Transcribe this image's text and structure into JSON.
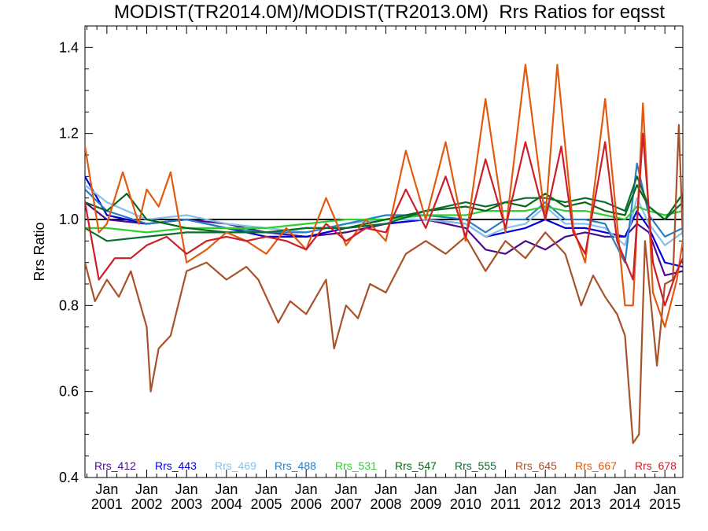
{
  "chart_data": {
    "type": "line",
    "title": "MODIST(TR2014.0M)/MODIST(TR2013.0M)  Rrs Ratios for eqsst",
    "xlabel": "",
    "ylabel": "Rrs Ratio",
    "xlim": [
      2000.45,
      2015.45
    ],
    "ylim": [
      0.4,
      1.45
    ],
    "yticks": [
      0.4,
      0.6,
      0.8,
      1.0,
      1.2,
      1.4
    ],
    "ytick_labels": [
      "0.4",
      "0.6",
      "0.8",
      "1.0",
      "1.2",
      "1.4"
    ],
    "xticks": [
      2001,
      2002,
      2003,
      2004,
      2005,
      2006,
      2007,
      2008,
      2009,
      2010,
      2011,
      2012,
      2013,
      2014,
      2015
    ],
    "xtick_labels": [
      [
        "Jan",
        "2001"
      ],
      [
        "Jan",
        "2002"
      ],
      [
        "Jan",
        "2003"
      ],
      [
        "Jan",
        "2004"
      ],
      [
        "Jan",
        "2005"
      ],
      [
        "Jan",
        "2006"
      ],
      [
        "Jan",
        "2007"
      ],
      [
        "Jan",
        "2008"
      ],
      [
        "Jan",
        "2009"
      ],
      [
        "Jan",
        "2010"
      ],
      [
        "Jan",
        "2011"
      ],
      [
        "Jan",
        "2012"
      ],
      [
        "Jan",
        "2013"
      ],
      [
        "Jan",
        "2014"
      ],
      [
        "Jan",
        "2015"
      ]
    ],
    "reference_line": 1.0,
    "legend_position": "bottom",
    "series": [
      {
        "name": "Rrs_412",
        "color": "#4b0a8c",
        "points": [
          [
            2000.45,
            1.04
          ],
          [
            2001,
            1.0
          ],
          [
            2002,
            0.99
          ],
          [
            2003,
            1.0
          ],
          [
            2004,
            0.99
          ],
          [
            2005,
            0.97
          ],
          [
            2006,
            0.96
          ],
          [
            2007,
            0.97
          ],
          [
            2008,
            0.99
          ],
          [
            2009,
            1.0
          ],
          [
            2010,
            0.98
          ],
          [
            2010.5,
            0.93
          ],
          [
            2011,
            0.92
          ],
          [
            2011.5,
            0.95
          ],
          [
            2012,
            0.93
          ],
          [
            2012.5,
            0.96
          ],
          [
            2013,
            0.97
          ],
          [
            2013.5,
            0.96
          ],
          [
            2014,
            0.96
          ],
          [
            2014.3,
            0.99
          ],
          [
            2014.6,
            0.97
          ],
          [
            2015,
            0.87
          ],
          [
            2015.45,
            0.88
          ]
        ]
      },
      {
        "name": "Rrs_443",
        "color": "#0000dd",
        "points": [
          [
            2000.45,
            1.1
          ],
          [
            2001,
            1.01
          ],
          [
            2002,
            0.99
          ],
          [
            2003,
            1.0
          ],
          [
            2004,
            0.98
          ],
          [
            2005,
            0.96
          ],
          [
            2006,
            0.96
          ],
          [
            2007,
            0.98
          ],
          [
            2008,
            0.99
          ],
          [
            2009,
            1.0
          ],
          [
            2010,
            0.99
          ],
          [
            2010.5,
            0.96
          ],
          [
            2011,
            0.97
          ],
          [
            2011.5,
            0.98
          ],
          [
            2012,
            1.0
          ],
          [
            2012.5,
            0.98
          ],
          [
            2013,
            0.98
          ],
          [
            2013.5,
            0.97
          ],
          [
            2014,
            0.96
          ],
          [
            2014.3,
            1.02
          ],
          [
            2014.6,
            0.98
          ],
          [
            2015,
            0.9
          ],
          [
            2015.45,
            0.89
          ]
        ]
      },
      {
        "name": "Rrs_469",
        "color": "#87c1e8",
        "points": [
          [
            2000.45,
            1.08
          ],
          [
            2001,
            1.04
          ],
          [
            2002,
            1.0
          ],
          [
            2003,
            1.01
          ],
          [
            2004,
            0.99
          ],
          [
            2005,
            0.98
          ],
          [
            2006,
            0.97
          ],
          [
            2007,
            0.99
          ],
          [
            2008,
            1.0
          ],
          [
            2009,
            1.0
          ],
          [
            2010,
            0.99
          ],
          [
            2010.5,
            0.96
          ],
          [
            2011,
            0.98
          ],
          [
            2011.5,
            0.99
          ],
          [
            2012,
            1.03
          ],
          [
            2012.5,
            0.99
          ],
          [
            2013,
            0.99
          ],
          [
            2013.5,
            0.98
          ],
          [
            2014,
            0.94
          ],
          [
            2014.3,
            1.05
          ],
          [
            2014.6,
            0.99
          ],
          [
            2015,
            0.94
          ],
          [
            2015.45,
            0.97
          ]
        ]
      },
      {
        "name": "Rrs_488",
        "color": "#2a7ec4",
        "points": [
          [
            2000.45,
            1.07
          ],
          [
            2001,
            1.02
          ],
          [
            2002,
            0.99
          ],
          [
            2003,
            1.0
          ],
          [
            2004,
            0.98
          ],
          [
            2005,
            0.97
          ],
          [
            2006,
            0.97
          ],
          [
            2007,
            0.99
          ],
          [
            2008,
            1.01
          ],
          [
            2009,
            1.01
          ],
          [
            2010,
            1.0
          ],
          [
            2010.5,
            0.97
          ],
          [
            2011,
            1.0
          ],
          [
            2011.5,
            1.0
          ],
          [
            2012,
            1.04
          ],
          [
            2012.5,
            1.0
          ],
          [
            2013,
            1.0
          ],
          [
            2013.5,
            0.99
          ],
          [
            2014,
            0.9
          ],
          [
            2014.3,
            1.13
          ],
          [
            2014.6,
            1.01
          ],
          [
            2015,
            0.96
          ],
          [
            2015.45,
            0.98
          ]
        ]
      },
      {
        "name": "Rrs_531",
        "color": "#2fcf2f",
        "points": [
          [
            2000.45,
            0.98
          ],
          [
            2001,
            0.98
          ],
          [
            2002,
            0.97
          ],
          [
            2003,
            0.98
          ],
          [
            2004,
            0.98
          ],
          [
            2005,
            0.98
          ],
          [
            2006,
            0.99
          ],
          [
            2007,
            1.0
          ],
          [
            2008,
            1.0
          ],
          [
            2009,
            1.01
          ],
          [
            2010,
            1.01
          ],
          [
            2010.5,
            1.02
          ],
          [
            2011,
            1.02
          ],
          [
            2011.5,
            1.02
          ],
          [
            2012,
            1.03
          ],
          [
            2012.5,
            1.02
          ],
          [
            2013,
            1.02
          ],
          [
            2013.5,
            1.01
          ],
          [
            2014,
            1.0
          ],
          [
            2014.3,
            1.03
          ],
          [
            2014.6,
            1.02
          ],
          [
            2015,
            1.01
          ],
          [
            2015.45,
            1.02
          ]
        ]
      },
      {
        "name": "Rrs_547",
        "color": "#086618",
        "points": [
          [
            2000.45,
            1.04
          ],
          [
            2001,
            1.02
          ],
          [
            2001.5,
            1.06
          ],
          [
            2002,
            1.0
          ],
          [
            2003,
            0.98
          ],
          [
            2004,
            0.97
          ],
          [
            2005,
            0.97
          ],
          [
            2006,
            0.98
          ],
          [
            2007,
            0.98
          ],
          [
            2008,
            1.0
          ],
          [
            2009,
            1.02
          ],
          [
            2010,
            1.03
          ],
          [
            2010.5,
            1.02
          ],
          [
            2011,
            1.04
          ],
          [
            2011.5,
            1.03
          ],
          [
            2012,
            1.06
          ],
          [
            2012.5,
            1.03
          ],
          [
            2013,
            1.04
          ],
          [
            2013.5,
            1.02
          ],
          [
            2014,
            1.01
          ],
          [
            2014.3,
            1.08
          ],
          [
            2014.6,
            1.03
          ],
          [
            2015,
            1.0
          ],
          [
            2015.45,
            1.06
          ]
        ]
      },
      {
        "name": "Rrs_555",
        "color": "#086e30",
        "points": [
          [
            2000.45,
            0.98
          ],
          [
            2001,
            0.95
          ],
          [
            2002,
            0.96
          ],
          [
            2003,
            0.97
          ],
          [
            2004,
            0.97
          ],
          [
            2005,
            0.97
          ],
          [
            2006,
            0.98
          ],
          [
            2007,
            0.98
          ],
          [
            2008,
            0.99
          ],
          [
            2009,
            1.02
          ],
          [
            2010,
            1.04
          ],
          [
            2010.5,
            1.03
          ],
          [
            2011,
            1.04
          ],
          [
            2011.5,
            1.05
          ],
          [
            2012,
            1.05
          ],
          [
            2012.5,
            1.04
          ],
          [
            2013,
            1.05
          ],
          [
            2013.5,
            1.04
          ],
          [
            2014,
            1.02
          ],
          [
            2014.3,
            1.1
          ],
          [
            2014.6,
            1.03
          ],
          [
            2015,
            1.0
          ],
          [
            2015.45,
            1.04
          ]
        ]
      },
      {
        "name": "Rrs_645",
        "color": "#a8522a",
        "points": [
          [
            2000.45,
            0.9
          ],
          [
            2000.7,
            0.81
          ],
          [
            2001,
            0.86
          ],
          [
            2001.3,
            0.82
          ],
          [
            2001.6,
            0.88
          ],
          [
            2002,
            0.75
          ],
          [
            2002.1,
            0.6
          ],
          [
            2002.3,
            0.7
          ],
          [
            2002.6,
            0.73
          ],
          [
            2003,
            0.88
          ],
          [
            2003.5,
            0.9
          ],
          [
            2004,
            0.86
          ],
          [
            2004.5,
            0.89
          ],
          [
            2004.8,
            0.86
          ],
          [
            2005,
            0.82
          ],
          [
            2005.3,
            0.76
          ],
          [
            2005.6,
            0.81
          ],
          [
            2006,
            0.78
          ],
          [
            2006.5,
            0.86
          ],
          [
            2006.7,
            0.7
          ],
          [
            2007,
            0.8
          ],
          [
            2007.3,
            0.77
          ],
          [
            2007.6,
            0.85
          ],
          [
            2008,
            0.83
          ],
          [
            2008.5,
            0.92
          ],
          [
            2009,
            0.95
          ],
          [
            2009.5,
            0.92
          ],
          [
            2010,
            0.96
          ],
          [
            2010.5,
            0.88
          ],
          [
            2011,
            0.95
          ],
          [
            2011.5,
            0.91
          ],
          [
            2012,
            0.97
          ],
          [
            2012.5,
            0.92
          ],
          [
            2012.9,
            0.8
          ],
          [
            2013.2,
            0.87
          ],
          [
            2013.5,
            0.82
          ],
          [
            2013.8,
            0.78
          ],
          [
            2014,
            0.73
          ],
          [
            2014.2,
            0.48
          ],
          [
            2014.35,
            0.5
          ],
          [
            2014.5,
            0.95
          ],
          [
            2014.8,
            0.66
          ],
          [
            2015,
            0.85
          ],
          [
            2015.2,
            0.86
          ],
          [
            2015.35,
            1.22
          ],
          [
            2015.45,
            0.96
          ]
        ]
      },
      {
        "name": "Rrs_667",
        "color": "#e15a10",
        "points": [
          [
            2000.45,
            1.17
          ],
          [
            2000.8,
            0.97
          ],
          [
            2001,
            0.99
          ],
          [
            2001.4,
            1.11
          ],
          [
            2001.8,
            0.99
          ],
          [
            2002,
            1.07
          ],
          [
            2002.3,
            1.03
          ],
          [
            2002.6,
            1.11
          ],
          [
            2003,
            0.9
          ],
          [
            2003.5,
            0.93
          ],
          [
            2004,
            0.97
          ],
          [
            2004.5,
            0.95
          ],
          [
            2005,
            0.92
          ],
          [
            2005.5,
            0.98
          ],
          [
            2006,
            0.93
          ],
          [
            2006.5,
            1.05
          ],
          [
            2007,
            0.94
          ],
          [
            2007.5,
            1.0
          ],
          [
            2008,
            0.95
          ],
          [
            2008.5,
            1.16
          ],
          [
            2009,
            1.0
          ],
          [
            2009.5,
            1.18
          ],
          [
            2010,
            0.95
          ],
          [
            2010.5,
            1.28
          ],
          [
            2011,
            0.97
          ],
          [
            2011.5,
            1.36
          ],
          [
            2012,
            1.0
          ],
          [
            2012.3,
            1.36
          ],
          [
            2012.7,
            0.98
          ],
          [
            2013,
            0.9
          ],
          [
            2013.5,
            1.28
          ],
          [
            2014,
            0.8
          ],
          [
            2014.2,
            0.8
          ],
          [
            2014.45,
            1.27
          ],
          [
            2014.7,
            0.83
          ],
          [
            2015,
            0.75
          ],
          [
            2015.3,
            0.86
          ],
          [
            2015.45,
            0.95
          ]
        ]
      },
      {
        "name": "Rrs_678",
        "color": "#cc1f2a",
        "points": [
          [
            2000.45,
            1.04
          ],
          [
            2000.8,
            0.86
          ],
          [
            2001.2,
            0.91
          ],
          [
            2001.6,
            0.91
          ],
          [
            2002,
            0.94
          ],
          [
            2002.5,
            0.96
          ],
          [
            2003,
            0.92
          ],
          [
            2003.5,
            0.95
          ],
          [
            2004,
            0.96
          ],
          [
            2004.5,
            0.95
          ],
          [
            2005,
            0.96
          ],
          [
            2005.5,
            0.95
          ],
          [
            2006,
            0.93
          ],
          [
            2006.5,
            0.99
          ],
          [
            2007,
            0.95
          ],
          [
            2007.5,
            0.98
          ],
          [
            2008,
            0.97
          ],
          [
            2008.5,
            1.07
          ],
          [
            2009,
            0.98
          ],
          [
            2009.5,
            1.1
          ],
          [
            2010,
            0.96
          ],
          [
            2010.5,
            1.14
          ],
          [
            2011,
            0.98
          ],
          [
            2011.5,
            1.18
          ],
          [
            2012,
            1.0
          ],
          [
            2012.4,
            1.17
          ],
          [
            2012.7,
            0.97
          ],
          [
            2013,
            0.92
          ],
          [
            2013.5,
            1.18
          ],
          [
            2013.8,
            0.95
          ],
          [
            2014.2,
            0.86
          ],
          [
            2014.45,
            1.2
          ],
          [
            2014.7,
            0.9
          ],
          [
            2015,
            0.8
          ],
          [
            2015.3,
            0.88
          ],
          [
            2015.45,
            0.91
          ]
        ]
      }
    ]
  }
}
